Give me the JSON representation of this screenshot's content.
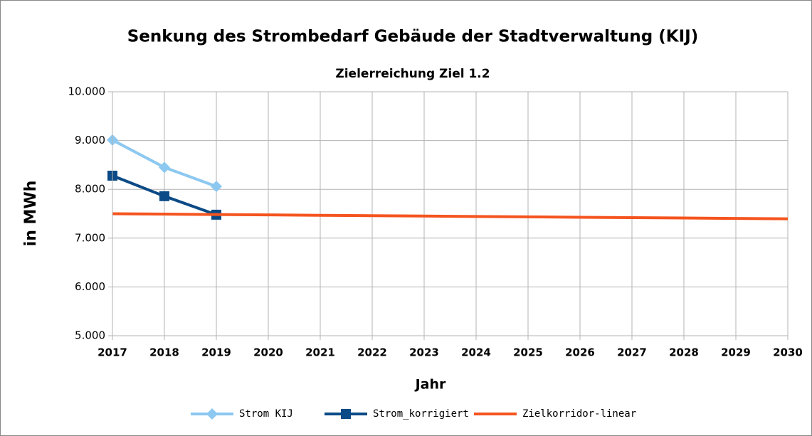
{
  "chart_data": {
    "type": "line",
    "title": "Senkung des Strombedarf Gebäude der Stadtverwaltung (KIJ)",
    "subtitle": "Zielerreichung Ziel 1.2",
    "x_label": "Jahr",
    "y_label": "in MWh",
    "x": [
      2017,
      2018,
      2019,
      2020,
      2021,
      2022,
      2023,
      2024,
      2025,
      2026,
      2027,
      2028,
      2029,
      2030
    ],
    "xlim": [
      2017,
      2030
    ],
    "xticks": [
      2017,
      2018,
      2019,
      2020,
      2021,
      2022,
      2023,
      2024,
      2025,
      2026,
      2027,
      2028,
      2029,
      2030
    ],
    "ylim": [
      5000,
      10000
    ],
    "yticks": [
      {
        "value": 5000,
        "label": "5.000"
      },
      {
        "value": 6000,
        "label": "6.000"
      },
      {
        "value": 7000,
        "label": "7.000"
      },
      {
        "value": 8000,
        "label": "8.000"
      },
      {
        "value": 9000,
        "label": "9.000"
      },
      {
        "value": 10000,
        "label": "10.000"
      }
    ],
    "grid": true,
    "legend": "bottom",
    "series": [
      {
        "name": "Strom KIJ",
        "color": "#8cc8f0",
        "marker": "diamond",
        "values": [
          9010,
          8450,
          8060,
          null,
          null,
          null,
          null,
          null,
          null,
          null,
          null,
          null,
          null,
          null
        ]
      },
      {
        "name": "Strom_korrigiert",
        "color": "#0b4a86",
        "marker": "square",
        "values": [
          8280,
          7860,
          7480,
          null,
          null,
          null,
          null,
          null,
          null,
          null,
          null,
          null,
          null,
          null
        ]
      },
      {
        "name": "Zielkorridor-linear",
        "color": "#f5541f",
        "marker": "none",
        "values": [
          7500,
          7492,
          7484,
          7476,
          7468,
          7460,
          7452,
          7444,
          7436,
          7428,
          7420,
          7412,
          7404,
          7396
        ]
      }
    ]
  }
}
